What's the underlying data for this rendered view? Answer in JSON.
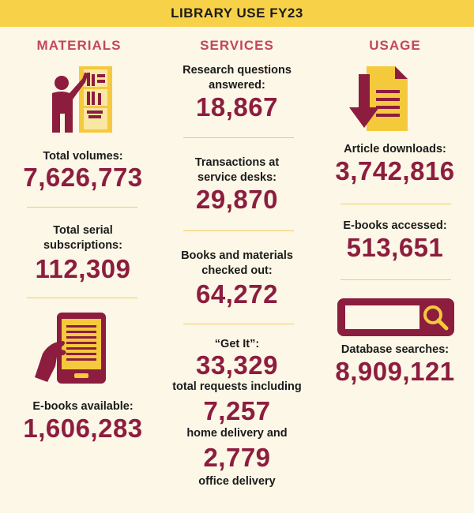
{
  "banner_title": "LIBRARY USE FY23",
  "columns": {
    "materials": {
      "heading": "MATERIALS",
      "total_volumes_label": "Total volumes:",
      "total_volumes_value": "7,626,773",
      "serial_label_line1": "Total serial",
      "serial_label_line2": "subscriptions:",
      "serial_value": "112,309",
      "ebooks_available_label": "E-books available:",
      "ebooks_available_value": "1,606,283"
    },
    "services": {
      "heading": "SERVICES",
      "research_label_line1": "Research questions",
      "research_label_line2": "answered:",
      "research_value": "18,867",
      "transactions_label_line1": "Transactions at",
      "transactions_label_line2": "service desks:",
      "transactions_value": "29,870",
      "checkout_label_line1": "Books and materials",
      "checkout_label_line2": "checked out:",
      "checkout_value": "64,272",
      "getit_label": "“Get It”:",
      "getit_value": "33,329",
      "getit_sub1": "total requests including",
      "home_value": "7,257",
      "home_label": "home delivery and",
      "office_value": "2,779",
      "office_label": "office delivery"
    },
    "usage": {
      "heading": "USAGE",
      "downloads_label": "Article downloads:",
      "downloads_value": "3,742,816",
      "ebooks_accessed_label": "E-books accessed:",
      "ebooks_accessed_value": "513,651",
      "db_label": "Database searches:",
      "db_value": "8,909,121"
    }
  },
  "icons": {
    "shelf": "person-at-bookshelf-icon",
    "ereader": "hand-holding-ereader-icon",
    "download": "document-download-icon",
    "search": "search-bar-icon"
  },
  "colors": {
    "banner": "#f7d148",
    "heading": "#c4465e",
    "number": "#8c1d3f",
    "icon_dark": "#8c1d3f",
    "icon_yellow": "#f5c93c",
    "background": "#fcf7e6"
  }
}
